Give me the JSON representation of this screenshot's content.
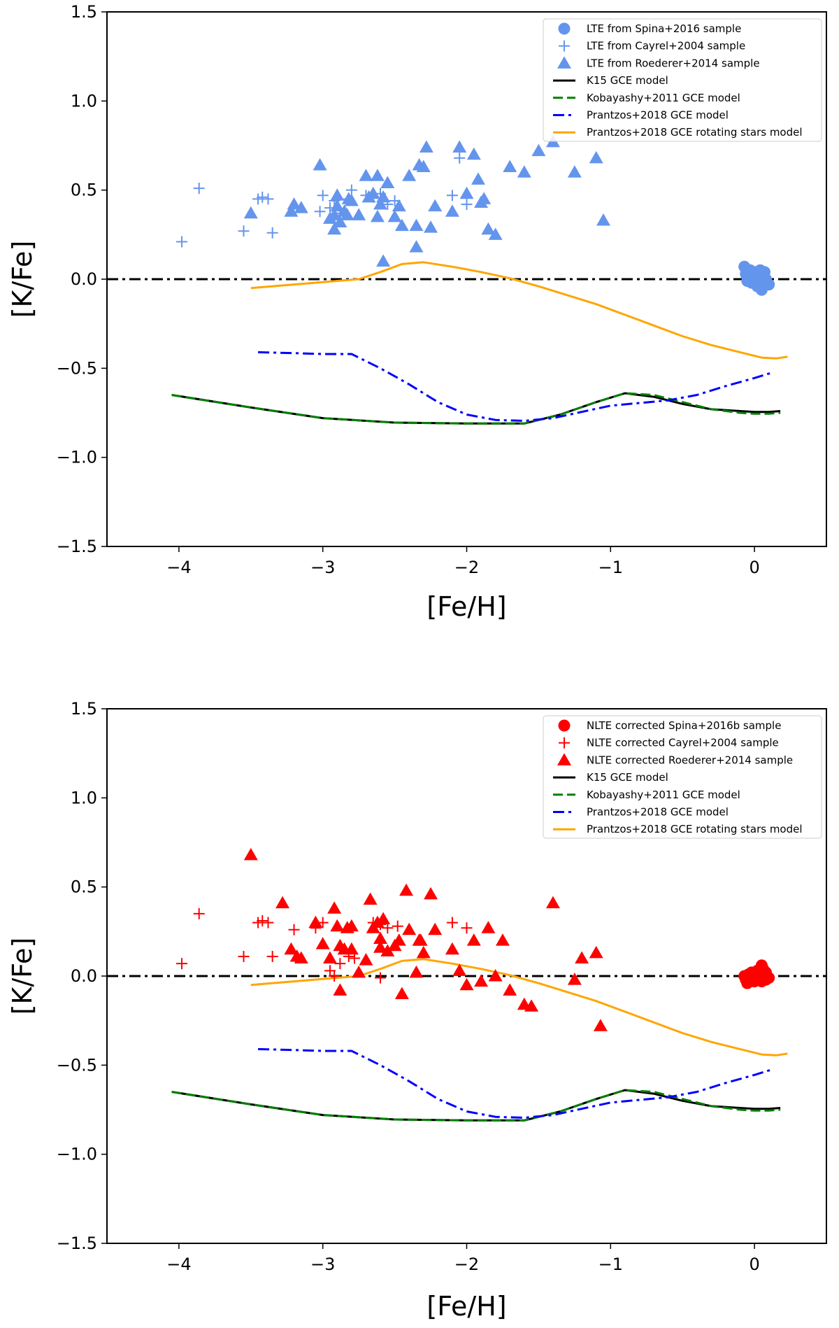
{
  "chart_data": [
    {
      "type": "scatter",
      "panel": "top",
      "xlabel": "[Fe/H]",
      "ylabel": "[K/Fe]",
      "xlim": [
        -4.5,
        0.5
      ],
      "ylim": [
        -1.5,
        1.5
      ],
      "xticks": [
        -4,
        -3,
        -2,
        -1,
        0
      ],
      "yticks": [
        -1.5,
        -1.0,
        -0.5,
        0.0,
        0.5,
        1.0,
        1.5
      ],
      "xtick_labels": [
        "−4",
        "−3",
        "−2",
        "−1",
        "0"
      ],
      "ytick_labels": [
        "−1.5",
        "−1.0",
        "−0.5",
        "0.0",
        "0.5",
        "1.0",
        "1.5"
      ],
      "legend_position": "top-right",
      "reference_line": {
        "y": 0.0,
        "style": "dashdot",
        "color": "#000000"
      },
      "series": [
        {
          "name": "LTE from Spina+2016 sample",
          "kind": "circle",
          "color": "#6495ED",
          "x": [
            -0.07,
            -0.06,
            -0.04,
            -0.03,
            -0.02,
            0.0,
            0.01,
            0.02,
            0.03,
            0.04,
            0.05,
            0.06,
            0.07,
            0.08,
            0.1,
            -0.05,
            0.0,
            0.05,
            0.08,
            0.02
          ],
          "y": [
            0.07,
            0.03,
            0.0,
            0.05,
            -0.02,
            0.04,
            0.0,
            -0.03,
            0.02,
            0.05,
            -0.05,
            0.01,
            0.04,
            -0.02,
            -0.03,
            -0.01,
            0.02,
            -0.06,
            0.0,
            -0.04
          ]
        },
        {
          "name": "LTE from Cayrel+2004 sample",
          "kind": "plus",
          "color": "#6495ED",
          "x": [
            -3.98,
            -3.86,
            -3.55,
            -3.45,
            -3.42,
            -3.38,
            -3.35,
            -3.0,
            -3.02,
            -2.95,
            -2.92,
            -2.88,
            -2.82,
            -2.8,
            -2.7,
            -2.65,
            -2.6,
            -2.55,
            -2.5,
            -2.1,
            -2.05,
            -2.0
          ],
          "y": [
            0.21,
            0.51,
            0.27,
            0.45,
            0.46,
            0.45,
            0.26,
            0.47,
            0.38,
            0.4,
            0.44,
            0.37,
            0.45,
            0.5,
            0.47,
            0.46,
            0.48,
            0.42,
            0.44,
            0.47,
            0.68,
            0.42
          ]
        },
        {
          "name": "LTE from Roederer+2014 sample",
          "kind": "triangle",
          "color": "#6495ED",
          "x": [
            -3.5,
            -3.22,
            -3.2,
            -3.15,
            -3.02,
            -2.95,
            -2.92,
            -2.9,
            -2.88,
            -2.85,
            -2.83,
            -2.8,
            -2.75,
            -2.7,
            -2.65,
            -2.62,
            -2.6,
            -2.58,
            -2.55,
            -2.5,
            -2.45,
            -2.4,
            -2.35,
            -2.3,
            -2.28,
            -2.25,
            -2.22,
            -2.1,
            -2.05,
            -2.0,
            -1.95,
            -1.92,
            -1.9,
            -1.85,
            -1.8,
            -1.7,
            -1.6,
            -1.5,
            -1.4,
            -1.25,
            -1.1,
            -1.05,
            -2.9,
            -2.62,
            -2.82,
            -2.47,
            -2.33,
            -1.88,
            -2.68,
            -2.92,
            -2.58,
            -2.35
          ],
          "y": [
            0.37,
            0.38,
            0.42,
            0.4,
            0.64,
            0.34,
            0.28,
            0.47,
            0.32,
            0.38,
            0.36,
            0.44,
            0.36,
            0.58,
            0.48,
            0.58,
            0.42,
            0.1,
            0.54,
            0.35,
            0.3,
            0.58,
            0.3,
            0.63,
            0.74,
            0.29,
            0.41,
            0.38,
            0.74,
            0.48,
            0.7,
            0.56,
            0.43,
            0.28,
            0.25,
            0.63,
            0.6,
            0.72,
            0.77,
            0.6,
            0.68,
            0.33,
            0.41,
            0.35,
            0.45,
            0.41,
            0.64,
            0.45,
            0.46,
            0.36,
            0.46,
            0.18
          ]
        },
        {
          "name": "K15 GCE model",
          "kind": "line",
          "dash": "solid",
          "color": "#000000",
          "x": [
            -4.05,
            -3.5,
            -3.0,
            -2.5,
            -2.0,
            -1.6,
            -1.35,
            -1.1,
            -0.9,
            -0.7,
            -0.5,
            -0.3,
            -0.1,
            0.0,
            0.1,
            0.18
          ],
          "y": [
            -0.65,
            -0.72,
            -0.78,
            -0.805,
            -0.81,
            -0.81,
            -0.76,
            -0.69,
            -0.64,
            -0.66,
            -0.7,
            -0.73,
            -0.74,
            -0.745,
            -0.745,
            -0.74
          ]
        },
        {
          "name": "Kobayashy+2011 GCE model",
          "kind": "line",
          "dash": "dashed",
          "color": "#008000",
          "x": [
            -4.05,
            -3.5,
            -3.0,
            -2.5,
            -2.0,
            -1.6,
            -1.35,
            -1.1,
            -0.9,
            -0.7,
            -0.5,
            -0.3,
            -0.1,
            0.0,
            0.1,
            0.18
          ],
          "y": [
            -0.65,
            -0.72,
            -0.78,
            -0.805,
            -0.81,
            -0.81,
            -0.76,
            -0.69,
            -0.64,
            -0.65,
            -0.69,
            -0.73,
            -0.75,
            -0.755,
            -0.755,
            -0.75
          ]
        },
        {
          "name": "Prantzos+2018 GCE model",
          "kind": "line",
          "dash": "dashdot",
          "color": "#0000FF",
          "x": [
            -3.45,
            -3.2,
            -3.0,
            -2.8,
            -2.6,
            -2.4,
            -2.2,
            -2.0,
            -1.8,
            -1.6,
            -1.4,
            -1.2,
            -1.0,
            -0.8,
            -0.6,
            -0.4,
            -0.2,
            0.0,
            0.12
          ],
          "y": [
            -0.41,
            -0.415,
            -0.42,
            -0.42,
            -0.5,
            -0.59,
            -0.69,
            -0.76,
            -0.79,
            -0.795,
            -0.78,
            -0.745,
            -0.71,
            -0.695,
            -0.68,
            -0.65,
            -0.6,
            -0.555,
            -0.525
          ]
        },
        {
          "name": "Prantzos+2018 GCE rotating stars model",
          "kind": "line",
          "dash": "solid",
          "color": "#FFA500",
          "x": [
            -3.5,
            -3.2,
            -2.9,
            -2.75,
            -2.6,
            -2.45,
            -2.3,
            -2.1,
            -1.9,
            -1.7,
            -1.5,
            -1.3,
            -1.1,
            -0.9,
            -0.7,
            -0.5,
            -0.3,
            -0.1,
            0.05,
            0.15,
            0.23
          ],
          "y": [
            -0.05,
            -0.03,
            -0.01,
            0.0,
            0.04,
            0.085,
            0.095,
            0.07,
            0.04,
            0.005,
            -0.04,
            -0.09,
            -0.14,
            -0.2,
            -0.26,
            -0.32,
            -0.37,
            -0.41,
            -0.44,
            -0.445,
            -0.435
          ]
        }
      ]
    },
    {
      "type": "scatter",
      "panel": "bottom",
      "xlabel": "[Fe/H]",
      "ylabel": "[K/Fe]",
      "xlim": [
        -4.5,
        0.5
      ],
      "ylim": [
        -1.5,
        1.5
      ],
      "xticks": [
        -4,
        -3,
        -2,
        -1,
        0
      ],
      "yticks": [
        -1.5,
        -1.0,
        -0.5,
        0.0,
        0.5,
        1.0,
        1.5
      ],
      "xtick_labels": [
        "−4",
        "−3",
        "−2",
        "−1",
        "0"
      ],
      "ytick_labels": [
        "−1.5",
        "−1.0",
        "−0.5",
        "0.0",
        "0.5",
        "1.0",
        "1.5"
      ],
      "legend_position": "top-right",
      "reference_line": {
        "y": 0.0,
        "style": "dashdot",
        "color": "#000000"
      },
      "series": [
        {
          "name": "NLTE corrected Spina+2016b sample",
          "kind": "circle",
          "color": "#FF0000",
          "x": [
            -0.07,
            -0.06,
            -0.04,
            -0.03,
            -0.02,
            0.0,
            0.01,
            0.02,
            0.03,
            0.04,
            0.05,
            0.06,
            0.07,
            0.08,
            0.1,
            -0.05,
            0.0,
            0.05,
            0.08,
            0.02
          ],
          "y": [
            0.0,
            -0.02,
            0.01,
            -0.01,
            0.02,
            -0.03,
            0.0,
            0.03,
            -0.01,
            0.02,
            0.06,
            0.04,
            0.0,
            -0.02,
            -0.01,
            -0.04,
            0.01,
            -0.03,
            0.02,
            0.0
          ]
        },
        {
          "name": "NLTE corrected Cayrel+2004 sample",
          "kind": "plus",
          "color": "#FF0000",
          "x": [
            -3.98,
            -3.86,
            -3.55,
            -3.45,
            -3.42,
            -3.38,
            -3.35,
            -3.2,
            -3.05,
            -3.0,
            -2.95,
            -2.92,
            -2.88,
            -2.82,
            -2.78,
            -2.65,
            -2.6,
            -2.55,
            -2.48,
            -2.1,
            -2.0,
            -2.6
          ],
          "y": [
            0.07,
            0.35,
            0.11,
            0.3,
            0.31,
            0.3,
            0.11,
            0.26,
            0.27,
            0.3,
            0.03,
            0.0,
            0.07,
            0.11,
            0.1,
            0.3,
            0.29,
            0.27,
            0.28,
            0.3,
            0.27,
            -0.01
          ]
        },
        {
          "name": "NLTE corrected Roederer+2014 sample",
          "kind": "triangle",
          "color": "#FF0000",
          "x": [
            -3.5,
            -3.28,
            -3.22,
            -3.18,
            -3.15,
            -3.05,
            -3.0,
            -2.95,
            -2.92,
            -2.9,
            -2.88,
            -2.85,
            -2.83,
            -2.8,
            -2.75,
            -2.7,
            -2.67,
            -2.65,
            -2.62,
            -2.6,
            -2.58,
            -2.55,
            -2.5,
            -2.45,
            -2.42,
            -2.4,
            -2.35,
            -2.32,
            -2.3,
            -2.25,
            -2.22,
            -2.1,
            -2.05,
            -2.0,
            -1.95,
            -1.9,
            -1.85,
            -1.8,
            -1.75,
            -1.7,
            -1.6,
            -1.55,
            -1.4,
            -1.25,
            -1.2,
            -1.1,
            -1.07,
            -2.88,
            -2.6,
            -2.8,
            -2.47,
            -2.33
          ],
          "y": [
            0.68,
            0.41,
            0.15,
            0.11,
            0.1,
            0.3,
            0.18,
            0.1,
            0.38,
            0.28,
            -0.08,
            0.15,
            0.27,
            0.28,
            0.02,
            0.09,
            0.43,
            0.27,
            0.3,
            0.16,
            0.32,
            0.14,
            0.17,
            -0.1,
            0.48,
            0.26,
            0.02,
            0.2,
            0.13,
            0.46,
            0.26,
            0.15,
            0.03,
            -0.05,
            0.2,
            -0.03,
            0.27,
            0.0,
            0.2,
            -0.08,
            -0.16,
            -0.17,
            0.41,
            -0.02,
            0.1,
            0.13,
            -0.28,
            0.17,
            0.21,
            0.15,
            0.2,
            0.2
          ]
        },
        {
          "name": "K15 GCE model",
          "kind": "line",
          "dash": "solid",
          "color": "#000000",
          "x": [
            -4.05,
            -3.5,
            -3.0,
            -2.5,
            -2.0,
            -1.6,
            -1.35,
            -1.1,
            -0.9,
            -0.7,
            -0.5,
            -0.3,
            -0.1,
            0.0,
            0.1,
            0.18
          ],
          "y": [
            -0.65,
            -0.72,
            -0.78,
            -0.805,
            -0.81,
            -0.81,
            -0.76,
            -0.69,
            -0.64,
            -0.66,
            -0.7,
            -0.73,
            -0.74,
            -0.745,
            -0.745,
            -0.74
          ]
        },
        {
          "name": "Kobayashy+2011 GCE model",
          "kind": "line",
          "dash": "dashed",
          "color": "#008000",
          "x": [
            -4.05,
            -3.5,
            -3.0,
            -2.5,
            -2.0,
            -1.6,
            -1.35,
            -1.1,
            -0.9,
            -0.7,
            -0.5,
            -0.3,
            -0.1,
            0.0,
            0.1,
            0.18
          ],
          "y": [
            -0.65,
            -0.72,
            -0.78,
            -0.805,
            -0.81,
            -0.81,
            -0.76,
            -0.69,
            -0.64,
            -0.65,
            -0.69,
            -0.73,
            -0.75,
            -0.755,
            -0.755,
            -0.75
          ]
        },
        {
          "name": "Prantzos+2018 GCE model",
          "kind": "line",
          "dash": "dashdot",
          "color": "#0000FF",
          "x": [
            -3.45,
            -3.2,
            -3.0,
            -2.8,
            -2.6,
            -2.4,
            -2.2,
            -2.0,
            -1.8,
            -1.6,
            -1.4,
            -1.2,
            -1.0,
            -0.8,
            -0.6,
            -0.4,
            -0.2,
            0.0,
            0.12
          ],
          "y": [
            -0.41,
            -0.415,
            -0.42,
            -0.42,
            -0.5,
            -0.59,
            -0.69,
            -0.76,
            -0.79,
            -0.795,
            -0.78,
            -0.745,
            -0.71,
            -0.695,
            -0.68,
            -0.65,
            -0.6,
            -0.555,
            -0.525
          ]
        },
        {
          "name": "Prantzos+2018 GCE rotating stars model",
          "kind": "line",
          "dash": "solid",
          "color": "#FFA500",
          "x": [
            -3.5,
            -3.2,
            -2.9,
            -2.75,
            -2.6,
            -2.45,
            -2.3,
            -2.1,
            -1.9,
            -1.7,
            -1.5,
            -1.3,
            -1.1,
            -0.9,
            -0.7,
            -0.5,
            -0.3,
            -0.1,
            0.05,
            0.15,
            0.23
          ],
          "y": [
            -0.05,
            -0.03,
            -0.01,
            0.0,
            0.04,
            0.085,
            0.095,
            0.07,
            0.04,
            0.005,
            -0.04,
            -0.09,
            -0.14,
            -0.2,
            -0.26,
            -0.32,
            -0.37,
            -0.41,
            -0.44,
            -0.445,
            -0.435
          ]
        }
      ]
    }
  ]
}
